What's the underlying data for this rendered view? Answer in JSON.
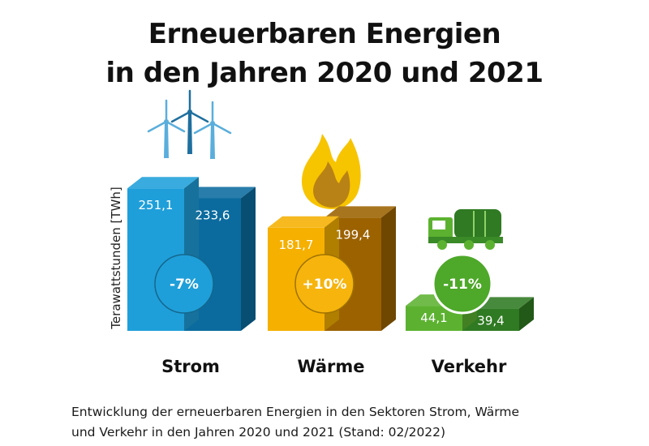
{
  "title_line1": "Erneuerbaren Energien",
  "title_line2": "in den Jahren 2020 und 2021",
  "caption_line1": "Entwicklung der erneuerbaren Energien in den Sektoren Strom, Wärme",
  "caption_line2": "und Verkehr in den Jahren 2020 und 2021 (Stand: 02/2022)",
  "icons": [
    "wind-turbines-icon",
    "flame-icon",
    "tanker-truck-icon"
  ],
  "colors": {
    "strom_2020": "#1f9fd9",
    "strom_2021": "#0b6b9e",
    "waerme_2020": "#f5b000",
    "waerme_2021": "#9c6200",
    "verkehr_2020": "#5cb230",
    "verkehr_2021": "#2f7a22"
  },
  "chart_data": {
    "type": "bar",
    "ylabel": "Terawattstunden [TWh]",
    "categories": [
      "Strom",
      "Wärme",
      "Verkehr"
    ],
    "series": [
      {
        "values": [
          251.1,
          181.7,
          44.1
        ],
        "labels": [
          "251,1",
          "181,7",
          "44,1"
        ]
      },
      {
        "values": [
          233.6,
          199.4,
          39.4
        ],
        "labels": [
          "233,6",
          "199,4",
          "39,4"
        ]
      }
    ],
    "changes": [
      "-7%",
      "+10%",
      "-11%"
    ]
  }
}
